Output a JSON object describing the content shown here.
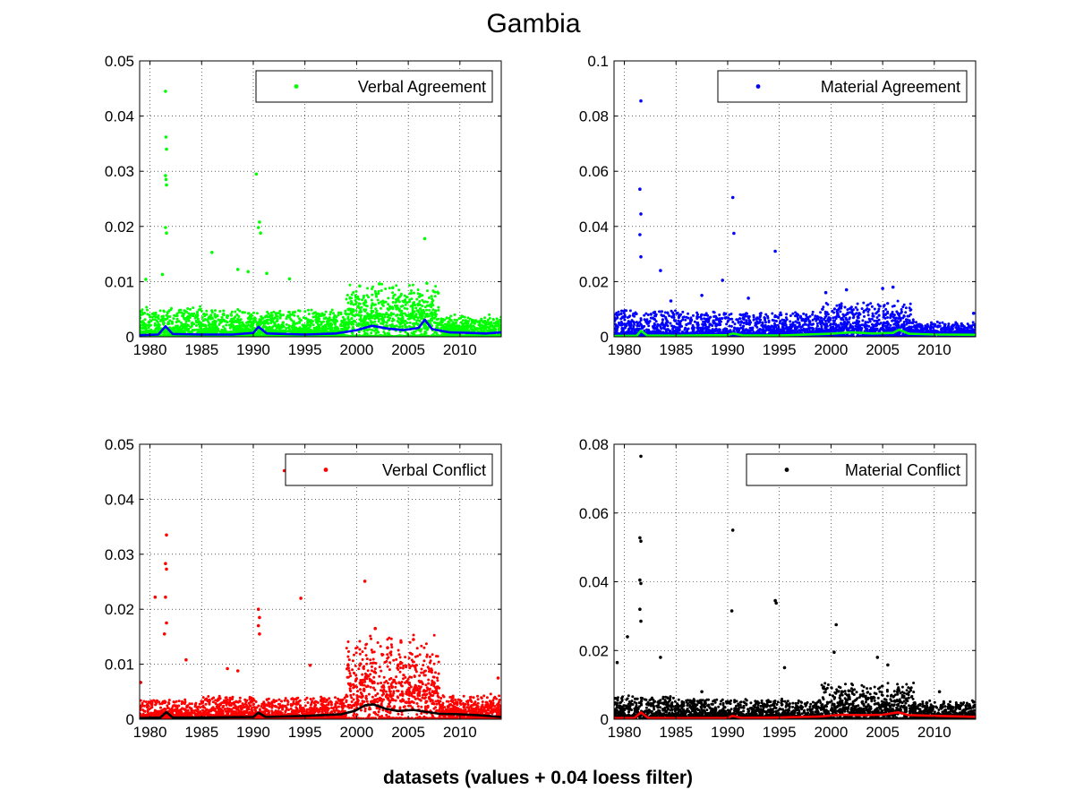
{
  "figure": {
    "title": "Gambia",
    "xlabel": "datasets (values + 0.04 loess filter)"
  },
  "chart_data": [
    {
      "type": "scatter",
      "title": "",
      "legend": "Verbal Agreement",
      "legend_position": "top-right",
      "marker_color": "#00ff00",
      "line_color": "#0000ff",
      "xlim": [
        1979,
        2014
      ],
      "ylim": [
        0,
        0.05
      ],
      "xticks": [
        "1980",
        "1985",
        "1990",
        "1995",
        "2000",
        "2005",
        "2010"
      ],
      "yticks": [
        "0",
        "0.01",
        "0.02",
        "0.03",
        "0.04",
        "0.05"
      ],
      "grid": true,
      "peaks": [
        [
          1981.5,
          0.0445
        ],
        [
          1981.55,
          0.0362
        ],
        [
          1981.6,
          0.034
        ],
        [
          1981.5,
          0.0292
        ],
        [
          1981.55,
          0.0285
        ],
        [
          1981.6,
          0.0275
        ],
        [
          1981.5,
          0.0198
        ],
        [
          1981.6,
          0.0188
        ],
        [
          1990.3,
          0.0295
        ],
        [
          1990.6,
          0.0208
        ],
        [
          1990.5,
          0.0198
        ],
        [
          1990.7,
          0.0188
        ],
        [
          2006.6,
          0.0178
        ],
        [
          1979.6,
          0.0104
        ],
        [
          1981.2,
          0.0113
        ],
        [
          1986.0,
          0.0153
        ],
        [
          1988.5,
          0.0122
        ],
        [
          1989.5,
          0.0118
        ],
        [
          1991.3,
          0.0115
        ],
        [
          1993.5,
          0.0105
        ],
        [
          2002.2,
          0.0096
        ],
        [
          2003.5,
          0.0089
        ],
        [
          2006.8,
          0.0097
        ],
        [
          2000.3,
          0.0092
        ]
      ],
      "scatter": {
        "note": "dense daily observations",
        "segments": [
          {
            "from": 1979,
            "to": 1985,
            "base": 0.0006,
            "spread": 0.0045
          },
          {
            "from": 1985,
            "to": 1999,
            "base": 0.0006,
            "spread": 0.004
          },
          {
            "from": 1999,
            "to": 2008,
            "base": 0.002,
            "spread": 0.006
          },
          {
            "from": 2008,
            "to": 2014,
            "base": 0.0008,
            "spread": 0.0025
          }
        ]
      },
      "loess": [
        [
          1979,
          0.0003
        ],
        [
          1980.8,
          0.0004
        ],
        [
          1981.5,
          0.0019
        ],
        [
          1982.2,
          0.0005
        ],
        [
          1985,
          0.0004
        ],
        [
          1988,
          0.0004
        ],
        [
          1990,
          0.0007
        ],
        [
          1990.5,
          0.0018
        ],
        [
          1991.3,
          0.0006
        ],
        [
          1995,
          0.0004
        ],
        [
          1998,
          0.0006
        ],
        [
          2000,
          0.0012
        ],
        [
          2001.5,
          0.002
        ],
        [
          2003,
          0.0015
        ],
        [
          2004.5,
          0.0012
        ],
        [
          2006,
          0.0016
        ],
        [
          2006.6,
          0.0031
        ],
        [
          2007.3,
          0.0014
        ],
        [
          2009,
          0.0008
        ],
        [
          2011,
          0.0007
        ],
        [
          2012.5,
          0.0006
        ],
        [
          2014,
          0.0008
        ]
      ]
    },
    {
      "type": "scatter",
      "title": "",
      "legend": "Material Agreement",
      "legend_position": "top-right",
      "marker_color": "#0000ff",
      "line_color": "#00ff00",
      "xlim": [
        1979,
        2014
      ],
      "ylim": [
        0,
        0.1
      ],
      "xticks": [
        "1980",
        "1985",
        "1990",
        "1995",
        "2000",
        "2005",
        "2010"
      ],
      "yticks": [
        "0",
        "0.02",
        "0.04",
        "0.06",
        "0.08",
        "0.1"
      ],
      "grid": true,
      "peaks": [
        [
          1981.6,
          0.0855
        ],
        [
          1981.5,
          0.0535
        ],
        [
          1981.6,
          0.0445
        ],
        [
          1981.5,
          0.037
        ],
        [
          1981.6,
          0.029
        ],
        [
          1990.5,
          0.0505
        ],
        [
          1990.6,
          0.0375
        ],
        [
          1994.6,
          0.031
        ],
        [
          1983.5,
          0.024
        ],
        [
          1989.5,
          0.0205
        ],
        [
          1999.5,
          0.016
        ],
        [
          2001.5,
          0.017
        ],
        [
          2005.0,
          0.0175
        ],
        [
          2006.0,
          0.018
        ],
        [
          1984.5,
          0.013
        ],
        [
          1987.5,
          0.015
        ],
        [
          1992.0,
          0.014
        ],
        [
          2013.8,
          0.0085
        ]
      ],
      "scatter": {
        "note": "dense daily observations",
        "segments": [
          {
            "from": 1979,
            "to": 1985,
            "base": 0.0006,
            "spread": 0.009
          },
          {
            "from": 1985,
            "to": 1999,
            "base": 0.0006,
            "spread": 0.008
          },
          {
            "from": 1999,
            "to": 2008,
            "base": 0.0015,
            "spread": 0.01
          },
          {
            "from": 2008,
            "to": 2014,
            "base": 0.0008,
            "spread": 0.004
          }
        ]
      },
      "loess": [
        [
          1979,
          0.0003
        ],
        [
          1981.2,
          0.0004
        ],
        [
          1981.6,
          0.0022
        ],
        [
          1982.2,
          0.0005
        ],
        [
          1985,
          0.0004
        ],
        [
          1990,
          0.0006
        ],
        [
          1990.5,
          0.0012
        ],
        [
          1991.5,
          0.0005
        ],
        [
          1995,
          0.0005
        ],
        [
          2000,
          0.0011
        ],
        [
          2002,
          0.0016
        ],
        [
          2004,
          0.0012
        ],
        [
          2006,
          0.0014
        ],
        [
          2006.6,
          0.0026
        ],
        [
          2007.5,
          0.0011
        ],
        [
          2010,
          0.0008
        ],
        [
          2014,
          0.0007
        ]
      ]
    },
    {
      "type": "scatter",
      "title": "",
      "legend": "Verbal Conflict",
      "legend_position": "top-right",
      "marker_color": "#ff0000",
      "line_color": "#000000",
      "xlim": [
        1979,
        2014
      ],
      "ylim": [
        0,
        0.05
      ],
      "xticks": [
        "1980",
        "1985",
        "1990",
        "1995",
        "2000",
        "2005",
        "2010"
      ],
      "yticks": [
        "0",
        "0.01",
        "0.02",
        "0.03",
        "0.04",
        "0.05"
      ],
      "grid": true,
      "peaks": [
        [
          1981.6,
          0.0335
        ],
        [
          1981.5,
          0.0283
        ],
        [
          1981.6,
          0.0273
        ],
        [
          1981.5,
          0.0222
        ],
        [
          1981.6,
          0.0175
        ],
        [
          1981.4,
          0.0155
        ],
        [
          1980.5,
          0.0222
        ],
        [
          1979.1,
          0.0067
        ],
        [
          1990.5,
          0.02
        ],
        [
          1990.6,
          0.0185
        ],
        [
          1990.5,
          0.017
        ],
        [
          1990.6,
          0.0155
        ],
        [
          1994.6,
          0.022
        ],
        [
          1993.0,
          0.0452
        ],
        [
          2000.8,
          0.0251
        ],
        [
          1983.5,
          0.0108
        ],
        [
          1987.5,
          0.0092
        ],
        [
          1988.5,
          0.0088
        ],
        [
          1995.5,
          0.0098
        ],
        [
          2004.3,
          0.014
        ],
        [
          2005.5,
          0.0145
        ],
        [
          2013.7,
          0.0075
        ],
        [
          2001.8,
          0.0165
        ],
        [
          2003.0,
          0.013
        ]
      ],
      "scatter": {
        "note": "dense daily observations",
        "segments": [
          {
            "from": 1979,
            "to": 1985,
            "base": 0.0003,
            "spread": 0.003
          },
          {
            "from": 1985,
            "to": 1999,
            "base": 0.0004,
            "spread": 0.0035
          },
          {
            "from": 1999,
            "to": 2008,
            "base": 0.003,
            "spread": 0.01
          },
          {
            "from": 2008,
            "to": 2014,
            "base": 0.0008,
            "spread": 0.003
          }
        ]
      },
      "loess": [
        [
          1979,
          0.0002
        ],
        [
          1981.0,
          0.0003
        ],
        [
          1981.6,
          0.0013
        ],
        [
          1982.2,
          0.0003
        ],
        [
          1985,
          0.0003
        ],
        [
          1990,
          0.0004
        ],
        [
          1990.5,
          0.0012
        ],
        [
          1991.2,
          0.0004
        ],
        [
          1995,
          0.0006
        ],
        [
          1998.5,
          0.0009
        ],
        [
          1999.8,
          0.0015
        ],
        [
          2000.8,
          0.0025
        ],
        [
          2001.6,
          0.0027
        ],
        [
          2002.8,
          0.0019
        ],
        [
          2004,
          0.0015
        ],
        [
          2005.5,
          0.0017
        ],
        [
          2006.5,
          0.0014
        ],
        [
          2008,
          0.001
        ],
        [
          2010,
          0.0009
        ],
        [
          2012,
          0.0007
        ],
        [
          2014,
          0.0004
        ]
      ]
    },
    {
      "type": "scatter",
      "title": "",
      "legend": "Material Conflict",
      "legend_position": "top-right",
      "marker_color": "#000000",
      "line_color": "#ff0000",
      "xlim": [
        1979,
        2014
      ],
      "ylim": [
        0,
        0.08
      ],
      "xticks": [
        "1980",
        "1985",
        "1990",
        "1995",
        "2000",
        "2005",
        "2010"
      ],
      "yticks": [
        "0",
        "0.02",
        "0.04",
        "0.06",
        "0.08"
      ],
      "grid": true,
      "peaks": [
        [
          1981.6,
          0.0765
        ],
        [
          1981.5,
          0.0528
        ],
        [
          1981.6,
          0.0518
        ],
        [
          1981.5,
          0.0405
        ],
        [
          1981.6,
          0.0395
        ],
        [
          1981.5,
          0.032
        ],
        [
          1981.6,
          0.0285
        ],
        [
          1990.5,
          0.055
        ],
        [
          1990.4,
          0.0315
        ],
        [
          1994.6,
          0.0345
        ],
        [
          1994.7,
          0.0338
        ],
        [
          2000.5,
          0.0275
        ],
        [
          1979.3,
          0.0165
        ],
        [
          1980.3,
          0.024
        ],
        [
          1983.5,
          0.018
        ],
        [
          2000.3,
          0.0195
        ],
        [
          2004.5,
          0.018
        ],
        [
          2005.5,
          0.0158
        ],
        [
          1995.5,
          0.015
        ],
        [
          1987.5,
          0.008
        ],
        [
          2010.5,
          0.008
        ],
        [
          2013.8,
          0.005
        ]
      ],
      "scatter": {
        "note": "dense daily observations",
        "segments": [
          {
            "from": 1979,
            "to": 1985,
            "base": 0.0005,
            "spread": 0.006
          },
          {
            "from": 1985,
            "to": 1999,
            "base": 0.0005,
            "spread": 0.005
          },
          {
            "from": 1999,
            "to": 2008,
            "base": 0.0015,
            "spread": 0.008
          },
          {
            "from": 2008,
            "to": 2014,
            "base": 0.0008,
            "spread": 0.004
          }
        ]
      },
      "loess": [
        [
          1979,
          0.0003
        ],
        [
          1981.0,
          0.0004
        ],
        [
          1981.6,
          0.002
        ],
        [
          1982.3,
          0.0004
        ],
        [
          1985,
          0.0003
        ],
        [
          1990,
          0.0004
        ],
        [
          1990.5,
          0.001
        ],
        [
          1991.3,
          0.0004
        ],
        [
          1995,
          0.0005
        ],
        [
          1999,
          0.0008
        ],
        [
          2001,
          0.0013
        ],
        [
          2003,
          0.0012
        ],
        [
          2005,
          0.0013
        ],
        [
          2006.5,
          0.002
        ],
        [
          2007.5,
          0.0012
        ],
        [
          2010,
          0.001
        ],
        [
          2014,
          0.0007
        ]
      ]
    }
  ]
}
